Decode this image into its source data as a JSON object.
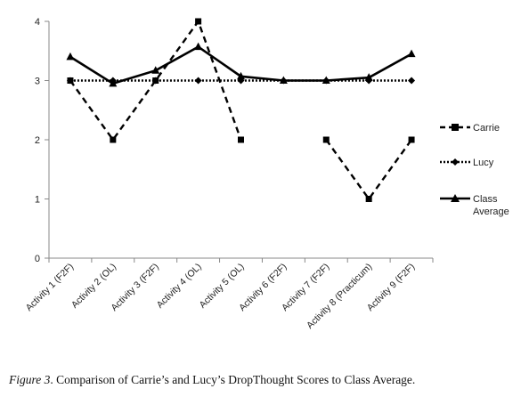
{
  "chart_data": {
    "type": "line",
    "categories": [
      "Activity 1 (F2F)",
      "Activity 2 (OL)",
      "Activity 3 (F2F)",
      "Activity 4 (OL)",
      "Activity 5 (OL)",
      "Activity 6 (F2F)",
      "Activity 7 (F2F)",
      "Activity 8 (Practicum)",
      "Activity 9 (F2F)"
    ],
    "series": [
      {
        "name": "Carrie",
        "style": "dashed",
        "marker": "square",
        "color": "#000000",
        "values": [
          3,
          2,
          3,
          4,
          2,
          null,
          2,
          1,
          2
        ]
      },
      {
        "name": "Lucy",
        "style": "dotted",
        "marker": "diamond",
        "color": "#000000",
        "values": [
          3,
          3,
          3,
          3,
          3,
          3,
          3,
          3,
          3
        ]
      },
      {
        "name": "Class Average",
        "style": "solid",
        "marker": "triangle",
        "color": "#000000",
        "values": [
          3.4,
          2.95,
          3.17,
          3.57,
          3.07,
          3.0,
          3.0,
          3.05,
          3.45
        ]
      }
    ],
    "ylim": [
      0,
      4
    ],
    "yticks": [
      "0",
      "1",
      "2",
      "3",
      "4"
    ],
    "grid": false,
    "legend_position": "right"
  },
  "legend": {
    "carrie": "Carrie",
    "lucy": "Lucy",
    "class_average_line1": "Class",
    "class_average_line2": "Average"
  },
  "caption": {
    "label": "Figure 3",
    "text": ". Comparison of Carrie’s and Lucy’s DropThought Scores to Class Average."
  }
}
